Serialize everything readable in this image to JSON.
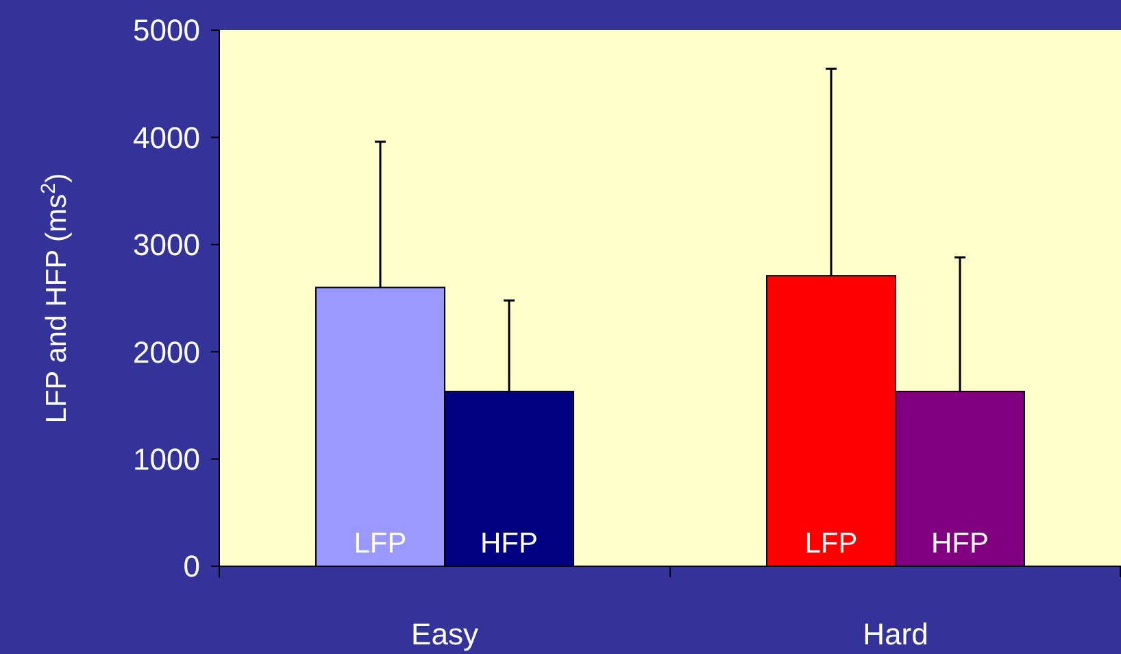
{
  "chart_data": {
    "type": "bar",
    "ylabel": "LFP and HFP (ms$^{2}$)",
    "categories": [
      "Easy",
      "Hard"
    ],
    "series": [
      {
        "name": "LFP",
        "colors": [
          "#9999ff",
          "#ff0000"
        ],
        "values": [
          2600,
          2710
        ],
        "errors": [
          [
            2600,
            3960
          ],
          [
            2710,
            4640
          ]
        ]
      },
      {
        "name": "HFP",
        "colors": [
          "#000080",
          "#800080"
        ],
        "values": [
          1630,
          1630
        ],
        "errors": [
          [
            1630,
            2480
          ],
          [
            1630,
            2880
          ]
        ]
      }
    ],
    "ylim": [
      0,
      5000
    ],
    "yticks": [
      0,
      1000,
      2000,
      3000,
      4000,
      5000
    ],
    "grid": false
  }
}
